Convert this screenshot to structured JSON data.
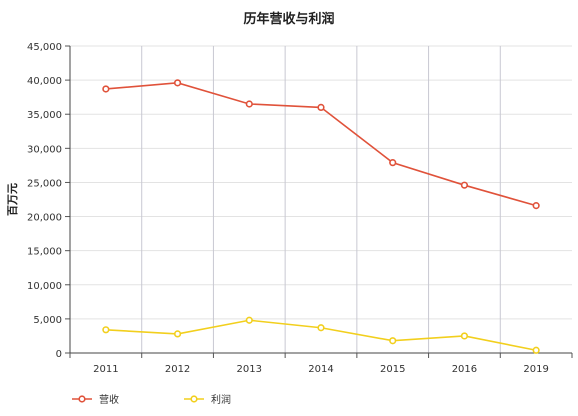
{
  "chart_data": {
    "type": "line",
    "title": "历年营收与利润",
    "ylabel": "百万元",
    "xlabel": "",
    "categories": [
      "2011",
      "2012",
      "2013",
      "2014",
      "2015",
      "2016",
      "2019"
    ],
    "ylim": [
      0,
      45000
    ],
    "yticks": [
      0,
      5000,
      10000,
      15000,
      20000,
      25000,
      30000,
      35000,
      40000,
      45000
    ],
    "ytick_labels": [
      "0",
      "5,000",
      "10,000",
      "15,000",
      "20,000",
      "25,000",
      "30,000",
      "35,000",
      "40,000",
      "45,000"
    ],
    "grid": true,
    "legend_position": "bottom-left",
    "series": [
      {
        "name": "营收",
        "color": "#e0523a",
        "values": [
          38700,
          39600,
          36500,
          36000,
          27900,
          24600,
          21600
        ]
      },
      {
        "name": "利润",
        "color": "#f2cf1d",
        "values": [
          3400,
          2800,
          4800,
          3700,
          1800,
          2500,
          400
        ]
      }
    ]
  }
}
